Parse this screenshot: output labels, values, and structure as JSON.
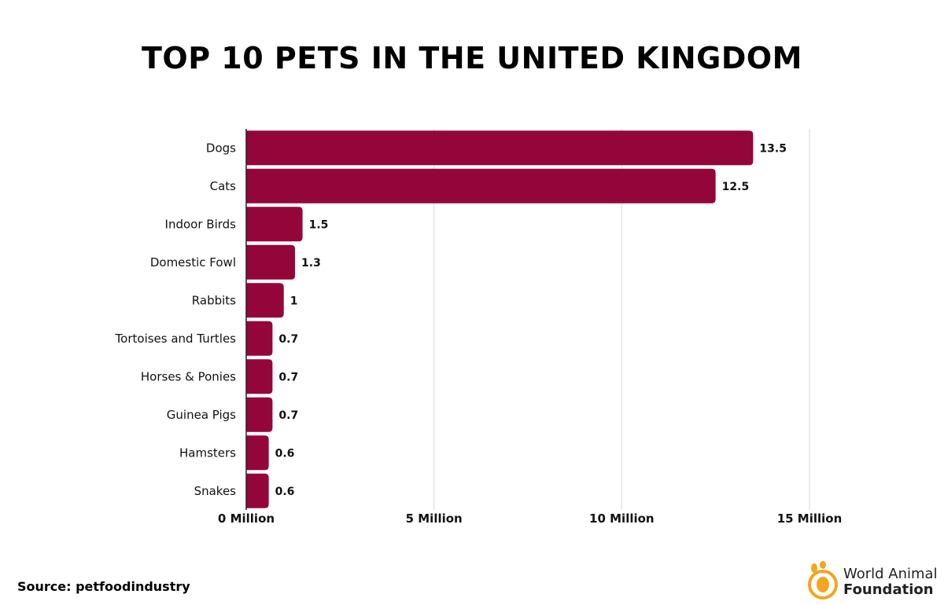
{
  "chart_data": {
    "type": "bar",
    "orientation": "horizontal",
    "title": "TOP 10 PETS IN THE UNITED KINGDOM",
    "categories": [
      "Dogs",
      "Cats",
      "Indoor Birds",
      "Domestic Fowl",
      "Rabbits",
      "Tortoises and Turtles",
      "Horses & Ponies",
      "Guinea Pigs",
      "Hamsters",
      "Snakes"
    ],
    "values": [
      13.5,
      12.5,
      1.5,
      1.3,
      1,
      0.7,
      0.7,
      0.7,
      0.6,
      0.6
    ],
    "value_labels": [
      "13.5",
      "12.5",
      "1.5",
      "1.3",
      "1",
      "0.7",
      "0.7",
      "0.7",
      "0.6",
      "0.6"
    ],
    "xlim": [
      0,
      15
    ],
    "xticks": [
      0,
      5,
      10,
      15
    ],
    "xtick_labels": [
      "0 Million",
      "5 Million",
      "10 Million",
      "15 Million"
    ],
    "grid": "vertical",
    "bar_color": "#94063a"
  },
  "footer": {
    "source": "Source: petfoodindustry"
  },
  "logo": {
    "line1": "World Animal",
    "line2": "Foundation",
    "accent": "#f3a51f"
  }
}
